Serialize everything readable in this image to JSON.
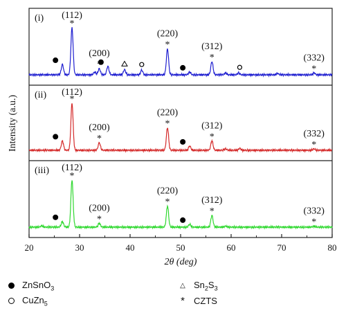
{
  "chart_data": {
    "type": "line",
    "title": "",
    "xlabel": "2θ (deg)",
    "ylabel": "Intensity (a.u.)",
    "xlim": [
      20,
      80
    ],
    "xticks": [
      "20",
      "30",
      "40",
      "50",
      "60",
      "70",
      "80"
    ],
    "grid": false,
    "panels": [
      {
        "label": "(i)",
        "color": "#1f1fd0",
        "peaks": [
          {
            "x": 26.6,
            "h": 0.22
          },
          {
            "x": 28.5,
            "h": 1.0
          },
          {
            "x": 33.0,
            "h": 0.06
          },
          {
            "x": 33.9,
            "h": 0.13
          },
          {
            "x": 35.6,
            "h": 0.18
          },
          {
            "x": 38.9,
            "h": 0.11
          },
          {
            "x": 42.3,
            "h": 0.1
          },
          {
            "x": 47.4,
            "h": 0.55
          },
          {
            "x": 51.8,
            "h": 0.06
          },
          {
            "x": 56.2,
            "h": 0.28
          },
          {
            "x": 58.9,
            "h": 0.04
          },
          {
            "x": 61.5,
            "h": 0.04
          },
          {
            "x": 69.2,
            "h": 0.03
          },
          {
            "x": 76.4,
            "h": 0.04
          }
        ],
        "markers": [
          {
            "x": 26.6,
            "type": "ZnSnO3"
          },
          {
            "x": 28.5,
            "type": "CZTS"
          },
          {
            "x": 33.9,
            "type": "CZTS"
          },
          {
            "x": 35.6,
            "type": "ZnSnO3"
          },
          {
            "x": 38.9,
            "type": "Sn2S3"
          },
          {
            "x": 42.3,
            "type": "CuZn5"
          },
          {
            "x": 47.4,
            "type": "CZTS"
          },
          {
            "x": 51.8,
            "type": "ZnSnO3"
          },
          {
            "x": 56.2,
            "type": "CZTS"
          },
          {
            "x": 61.7,
            "type": "CuZn5"
          },
          {
            "x": 76.4,
            "type": "CZTS"
          }
        ],
        "hkl": [
          {
            "x": 28.5,
            "text": "(112)"
          },
          {
            "x": 33.9,
            "text": "(200)"
          },
          {
            "x": 47.4,
            "text": "(220)"
          },
          {
            "x": 56.2,
            "text": "(312)"
          },
          {
            "x": 76.4,
            "text": "(332)"
          }
        ]
      },
      {
        "label": "(ii)",
        "color": "#d42a2a",
        "peaks": [
          {
            "x": 26.6,
            "h": 0.2
          },
          {
            "x": 28.5,
            "h": 1.0
          },
          {
            "x": 33.9,
            "h": 0.16
          },
          {
            "x": 47.4,
            "h": 0.48
          },
          {
            "x": 51.8,
            "h": 0.09
          },
          {
            "x": 56.2,
            "h": 0.2
          },
          {
            "x": 58.9,
            "h": 0.03
          },
          {
            "x": 61.7,
            "h": 0.04
          },
          {
            "x": 76.4,
            "h": 0.03
          }
        ],
        "markers": [
          {
            "x": 26.6,
            "type": "ZnSnO3"
          },
          {
            "x": 28.5,
            "type": "CZTS"
          },
          {
            "x": 33.9,
            "type": "CZTS"
          },
          {
            "x": 47.4,
            "type": "CZTS"
          },
          {
            "x": 51.8,
            "type": "ZnSnO3"
          },
          {
            "x": 56.2,
            "type": "CZTS"
          },
          {
            "x": 76.4,
            "type": "CZTS"
          }
        ],
        "hkl": [
          {
            "x": 28.5,
            "text": "(112)"
          },
          {
            "x": 33.9,
            "text": "(200)"
          },
          {
            "x": 47.4,
            "text": "(220)"
          },
          {
            "x": 56.2,
            "text": "(312)"
          },
          {
            "x": 76.4,
            "text": "(332)"
          }
        ]
      },
      {
        "label": "(iii)",
        "color": "#2fd82f",
        "peaks": [
          {
            "x": 22.5,
            "h": 0.03
          },
          {
            "x": 26.6,
            "h": 0.12
          },
          {
            "x": 28.5,
            "h": 1.0
          },
          {
            "x": 33.9,
            "h": 0.08
          },
          {
            "x": 47.4,
            "h": 0.45
          },
          {
            "x": 51.8,
            "h": 0.06
          },
          {
            "x": 56.2,
            "h": 0.25
          },
          {
            "x": 58.9,
            "h": 0.02
          },
          {
            "x": 76.4,
            "h": 0.02
          }
        ],
        "markers": [
          {
            "x": 26.6,
            "type": "ZnSnO3"
          },
          {
            "x": 28.5,
            "type": "CZTS"
          },
          {
            "x": 33.9,
            "type": "CZTS"
          },
          {
            "x": 47.4,
            "type": "CZTS"
          },
          {
            "x": 51.8,
            "type": "ZnSnO3"
          },
          {
            "x": 56.2,
            "type": "CZTS"
          },
          {
            "x": 76.4,
            "type": "CZTS"
          }
        ],
        "hkl": [
          {
            "x": 28.5,
            "text": "(112)"
          },
          {
            "x": 33.9,
            "text": "(200)"
          },
          {
            "x": 47.4,
            "text": "(220)"
          },
          {
            "x": 56.2,
            "text": "(312)"
          },
          {
            "x": 76.4,
            "text": "(332)"
          }
        ]
      }
    ]
  },
  "legend": {
    "znsno3": {
      "base": "ZnSnO",
      "sub": "3"
    },
    "cuzn5": {
      "base": "CuZn",
      "sub": "5"
    },
    "sn2s3": {
      "a": "Sn",
      "sub1": "2",
      "b": "S",
      "sub2": "3"
    },
    "czts": "CZTS",
    "markers": {
      "ZnSnO3": "dot",
      "CuZn5": "ring",
      "Sn2S3": "triangle",
      "CZTS": "star"
    }
  }
}
